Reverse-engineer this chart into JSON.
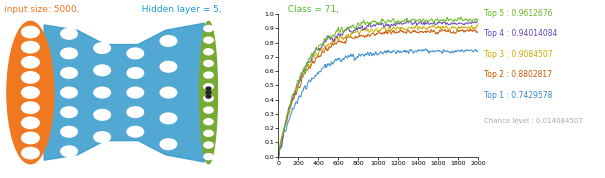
{
  "title_parts": [
    {
      "text": "input size: 5000,",
      "color": "#f07820"
    },
    {
      "text": "  Hidden layer = 5,",
      "color": "#1a9cd8"
    },
    {
      "text": "  Class = 71,",
      "color": "#55bb33"
    }
  ],
  "legend_entries": [
    {
      "label": "Top 5 : 0.9612676",
      "color": "#66bb22"
    },
    {
      "label": "Top 4 : 0.94014084",
      "color": "#6644bb"
    },
    {
      "label": "Top 3 : 0.9084507",
      "color": "#ccaa00"
    },
    {
      "label": "Top 2 : 0.8802817",
      "color": "#cc5500"
    },
    {
      "label": "Top 1 : 0.7429578",
      "color": "#3388cc"
    }
  ],
  "chance_level_text": "Chance level : 0.014084507",
  "chance_level_color": "#aaaaaa",
  "xlim": [
    0,
    2000
  ],
  "ylim": [
    0,
    1.0
  ],
  "xticks": [
    0,
    200,
    400,
    600,
    800,
    1000,
    1200,
    1400,
    1600,
    1800,
    2000
  ],
  "yticks": [
    0,
    0.1,
    0.2,
    0.3,
    0.4,
    0.5,
    0.6,
    0.7,
    0.8,
    0.9,
    1.0
  ],
  "line_colors": [
    "#3388cc",
    "#cc5500",
    "#ccaa00",
    "#6644bb",
    "#66bb22"
  ],
  "final_values": [
    0.7429578,
    0.8802817,
    0.9084507,
    0.94014084,
    0.9612676
  ],
  "background_color": "#ffffff",
  "nn_input_color": "#f07820",
  "nn_hidden_color": "#3399cc",
  "nn_output_color": "#77aa33"
}
